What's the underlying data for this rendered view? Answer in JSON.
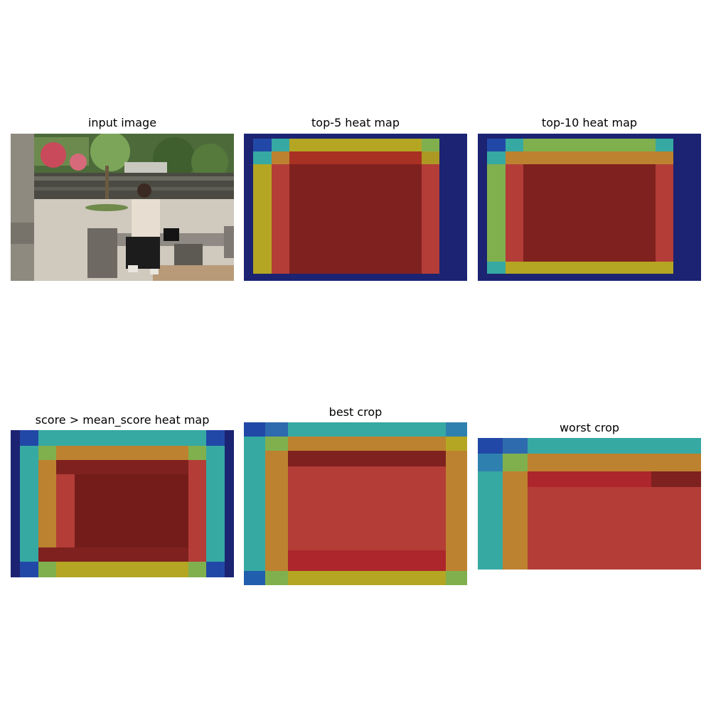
{
  "panels": [
    {
      "title": "input image"
    },
    {
      "title": "top-5 heat map"
    },
    {
      "title": "top-10 heat map"
    },
    {
      "title": "score > mean_score heat map"
    },
    {
      "title": "best crop"
    },
    {
      "title": "worst crop"
    }
  ],
  "colors": {
    "jet_dark_blue": "#101c8c",
    "jet_blue": "#1a4fd6",
    "jet_cyan": "#35d6d0",
    "jet_green": "#9be05a",
    "jet_yellow": "#e3d21f",
    "jet_orange": "#f2903a",
    "jet_red": "#e3403b",
    "jet_dark_red": "#8b1212"
  },
  "scene": {
    "subject": "man-seated-on-bench",
    "setting": "garden-courtyard"
  }
}
